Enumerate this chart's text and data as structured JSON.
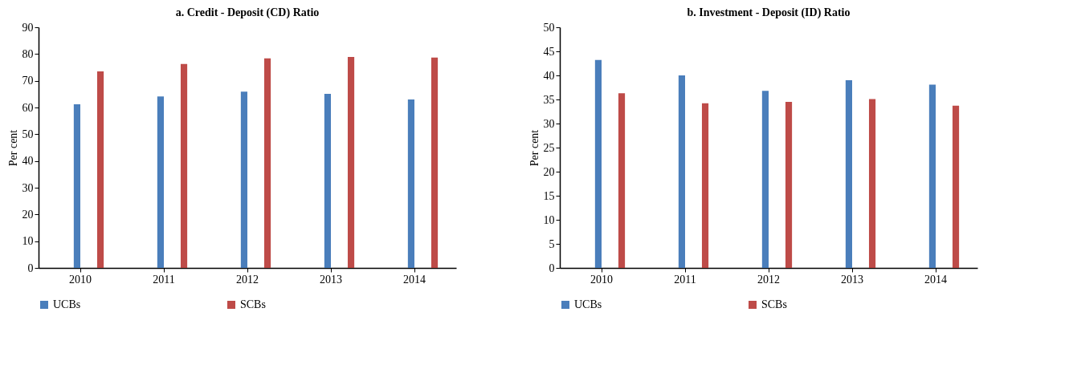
{
  "chart_data": [
    {
      "type": "bar",
      "title": "a. Credit - Deposit (CD) Ratio",
      "ylabel": "Per cent",
      "categories": [
        "2010",
        "2011",
        "2012",
        "2013",
        "2014"
      ],
      "series": [
        {
          "name": "UCBs",
          "color": "#4a7ebb",
          "values": [
            61.2,
            64.1,
            65.9,
            65.1,
            63.0
          ]
        },
        {
          "name": "SCBs",
          "color": "#be4b48",
          "values": [
            73.5,
            76.3,
            78.4,
            78.9,
            78.7
          ]
        }
      ],
      "ylim": [
        0,
        90
      ],
      "yticks": [
        0,
        10,
        20,
        30,
        40,
        50,
        60,
        70,
        80,
        90
      ],
      "legend": "bottom",
      "grid": false
    },
    {
      "type": "bar",
      "title": "b. Investment - Deposit (ID) Ratio",
      "ylabel": "Per cent",
      "categories": [
        "2010",
        "2011",
        "2012",
        "2013",
        "2014"
      ],
      "series": [
        {
          "name": "UCBs",
          "color": "#4a7ebb",
          "values": [
            43.2,
            40.0,
            36.8,
            39.0,
            38.1
          ]
        },
        {
          "name": "SCBs",
          "color": "#be4b48",
          "values": [
            36.3,
            34.2,
            34.5,
            35.1,
            33.7
          ]
        }
      ],
      "ylim": [
        0,
        50
      ],
      "yticks": [
        0,
        5,
        10,
        15,
        20,
        25,
        30,
        35,
        40,
        45,
        50
      ],
      "legend": "bottom",
      "grid": false
    }
  ]
}
